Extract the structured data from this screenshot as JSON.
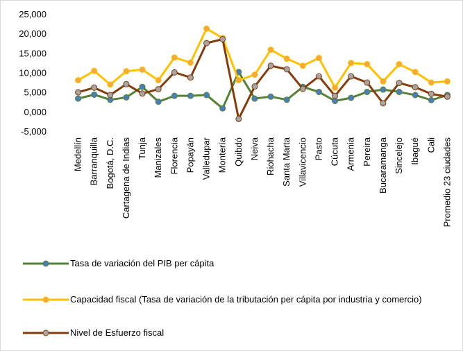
{
  "chart_data": {
    "type": "line",
    "categories": [
      "Medellín",
      "Barranquilla",
      "Bogotá, D.C.",
      "Cartagena de Indias",
      "Tunja",
      "Manizales",
      "Florencia",
      "Popayán",
      "Valledupar",
      "Montería",
      "Quibdó",
      "Neiva",
      "Riohacha",
      "Santa Marta",
      "Villavicencio",
      "Pasto",
      "Cúcuta",
      "Armenia",
      "Pereira",
      "Bucaramanga",
      "Sincelejo",
      "Ibagué",
      "Cali",
      "Promedio 23 ciudades"
    ],
    "series": [
      {
        "name": "Tasa de variación del PIB per cápita",
        "color": "#548235",
        "marker_color": "#4a7ebb",
        "values": [
          3500,
          4500,
          3200,
          3800,
          6500,
          2700,
          4200,
          4200,
          4400,
          1000,
          10300,
          3500,
          4000,
          3200,
          6500,
          5200,
          2900,
          3700,
          5200,
          5800,
          5200,
          4400,
          3100,
          4400
        ]
      },
      {
        "name": "Capacidad fiscal (Tasa de variación de la tributación per cápita por industria y comercio)",
        "color": "#ffc000",
        "marker_color": "#f4a93b",
        "values": [
          8200,
          10600,
          7100,
          10500,
          10900,
          8200,
          14000,
          12700,
          21400,
          19000,
          8200,
          9600,
          16000,
          13700,
          11900,
          13900,
          6300,
          12600,
          12300,
          7900,
          12300,
          10300,
          7600,
          7900
        ]
      },
      {
        "name": "Nivel de Esfuerzo fiscal",
        "color": "#843c0c",
        "marker_color": "#a5a5a5",
        "values": [
          5100,
          6300,
          4400,
          7200,
          4800,
          5900,
          10200,
          8900,
          17700,
          18700,
          -1700,
          6600,
          11900,
          11000,
          6000,
          9200,
          4200,
          9200,
          7600,
          2300,
          7500,
          6400,
          4700,
          4000
        ]
      }
    ],
    "ylim": [
      -5000,
      25000
    ],
    "yticks": [
      {
        "value": -5000,
        "label": "-5,000"
      },
      {
        "value": 0,
        "label": "0,000"
      },
      {
        "value": 5000,
        "label": "5,000"
      },
      {
        "value": 10000,
        "label": "10,000"
      },
      {
        "value": 15000,
        "label": "15,000"
      },
      {
        "value": 20000,
        "label": "20,000"
      },
      {
        "value": 25000,
        "label": "25,000"
      }
    ],
    "grid": false
  }
}
